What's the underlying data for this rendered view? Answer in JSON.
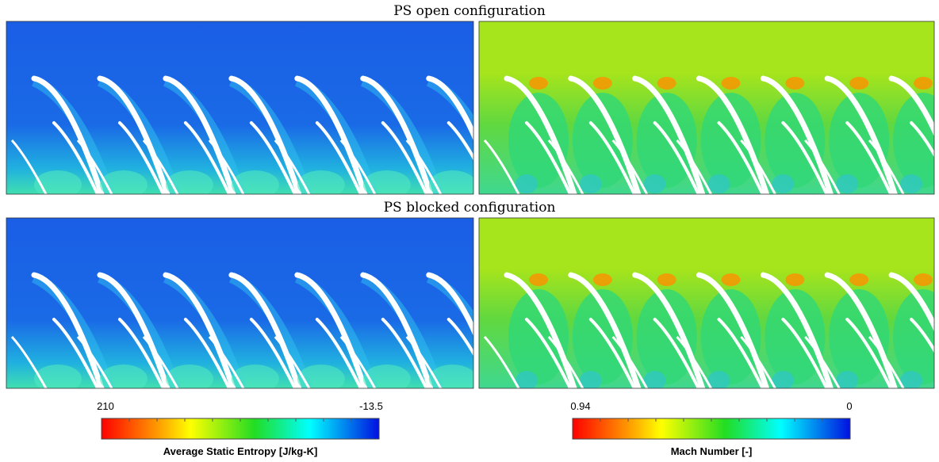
{
  "titles": [
    "PS open configuration",
    "PS blocked configuration"
  ],
  "colorbars": [
    {
      "min_label": "210",
      "max_label": "-13.5",
      "title": "Average Static Entropy [J/kg-K]"
    },
    {
      "min_label": "0.94",
      "max_label": "0",
      "title": "Mach Number [-]"
    }
  ]
}
